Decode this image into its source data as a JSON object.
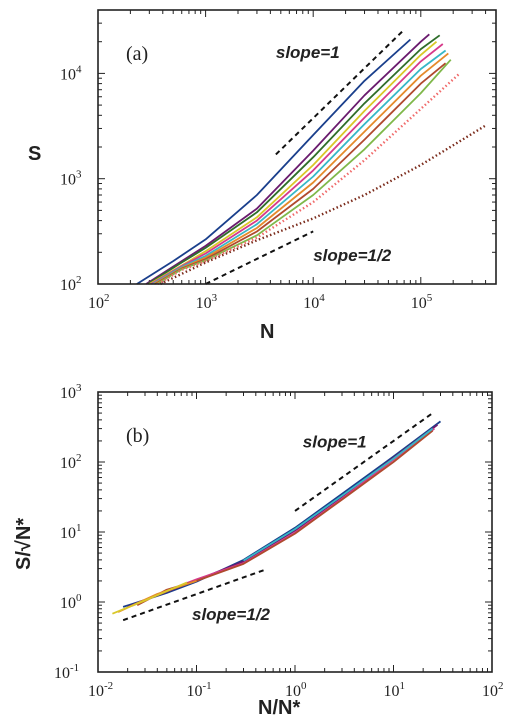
{
  "chart_data": [
    {
      "type": "line",
      "panel_label": "(a)",
      "xlabel": "N",
      "ylabel": "S",
      "xscale": "log",
      "yscale": "log",
      "xlim": [
        100,
        500000
      ],
      "ylim": [
        100,
        40000
      ],
      "x_tick_labels": [
        {
          "base": "10",
          "exp": "2",
          "value": 100
        },
        {
          "base": "10",
          "exp": "3",
          "value": 1000
        },
        {
          "base": "10",
          "exp": "4",
          "value": 10000
        },
        {
          "base": "10",
          "exp": "5",
          "value": 100000
        }
      ],
      "y_tick_labels": [
        {
          "base": "10",
          "exp": "2",
          "value": 100
        },
        {
          "base": "10",
          "exp": "3",
          "value": 1000
        },
        {
          "base": "10",
          "exp": "4",
          "value": 10000
        }
      ],
      "annotations": [
        {
          "text": "slope=1",
          "x": 4500,
          "y": 14000
        },
        {
          "text": "slope=1/2",
          "x": 10000,
          "y": 165
        }
      ],
      "guide_lines": [
        {
          "kind": "slope=1",
          "x": [
            4500,
            70000
          ],
          "y": [
            1700,
            26000
          ]
        },
        {
          "kind": "slope=1/2",
          "x": [
            1000,
            10000
          ],
          "y": [
            100,
            316
          ]
        }
      ],
      "series": [
        {
          "color": "#1a3f8c",
          "style": "solid",
          "x": [
            230,
            500,
            1000,
            3000,
            10000,
            30000,
            80000
          ],
          "y": [
            100,
            165,
            265,
            700,
            2600,
            8500,
            21000
          ]
        },
        {
          "color": "#6a1b6e",
          "style": "solid",
          "x": [
            280,
            600,
            1000,
            3000,
            10000,
            30000,
            100000,
            120000
          ],
          "y": [
            100,
            165,
            230,
            520,
            1850,
            6200,
            20000,
            23500
          ]
        },
        {
          "color": "#2f6e2a",
          "style": "solid",
          "x": [
            290,
            600,
            1000,
            3000,
            10000,
            30000,
            100000,
            150000
          ],
          "y": [
            100,
            160,
            220,
            480,
            1600,
            5200,
            17000,
            23000
          ]
        },
        {
          "color": "#d9c829",
          "style": "solid",
          "x": [
            300,
            600,
            1000,
            3000,
            10000,
            30000,
            100000,
            140000
          ],
          "y": [
            100,
            150,
            205,
            430,
            1350,
            4400,
            15000,
            20000
          ]
        },
        {
          "color": "#d63a8a",
          "style": "solid",
          "x": [
            310,
            600,
            1000,
            3000,
            10000,
            30000,
            100000,
            160000
          ],
          "y": [
            100,
            148,
            195,
            400,
            1200,
            3800,
            13000,
            19000
          ]
        },
        {
          "color": "#37b7c6",
          "style": "solid",
          "x": [
            320,
            600,
            1000,
            3000,
            10000,
            30000,
            100000,
            170000
          ],
          "y": [
            100,
            145,
            185,
            370,
            1050,
            3300,
            11000,
            16500
          ]
        },
        {
          "color": "#e58a2b",
          "style": "solid",
          "x": [
            330,
            600,
            1000,
            3000,
            10000,
            30000,
            100000,
            180000
          ],
          "y": [
            100,
            142,
            178,
            340,
            920,
            2800,
            9500,
            15500
          ]
        },
        {
          "color": "#b04a2e",
          "style": "solid",
          "x": [
            340,
            600,
            1000,
            3000,
            10000,
            30000,
            100000,
            170000
          ],
          "y": [
            100,
            140,
            172,
            315,
            800,
            2350,
            8000,
            12500
          ]
        },
        {
          "color": "#7fb84a",
          "style": "solid",
          "x": [
            350,
            600,
            1000,
            3000,
            10000,
            30000,
            100000,
            190000
          ],
          "y": [
            100,
            138,
            168,
            290,
            700,
            1900,
            6500,
            13500
          ]
        },
        {
          "color": "#f06a6a",
          "style": "dotted",
          "x": [
            360,
            600,
            1000,
            3000,
            10000,
            30000,
            100000,
            230000
          ],
          "y": [
            100,
            136,
            165,
            275,
            600,
            1500,
            4600,
            10000
          ]
        },
        {
          "color": "#7a2a1a",
          "style": "dotted",
          "x": [
            380,
            1000,
            3000,
            10000,
            30000,
            100000,
            400000
          ],
          "y": [
            100,
            160,
            260,
            420,
            700,
            1350,
            3200
          ]
        }
      ]
    },
    {
      "type": "line",
      "panel_label": "(b)",
      "xlabel": "N/N*",
      "ylabel": "S/√N*",
      "xscale": "log",
      "yscale": "log",
      "xlim": [
        0.01,
        100
      ],
      "ylim": [
        0.1,
        1000
      ],
      "x_tick_labels": [
        {
          "base": "10",
          "exp": "-2",
          "value": 0.01
        },
        {
          "base": "10",
          "exp": "-1",
          "value": 0.1
        },
        {
          "base": "10",
          "exp": "0",
          "value": 1
        },
        {
          "base": "10",
          "exp": "1",
          "value": 10
        },
        {
          "base": "10",
          "exp": "2",
          "value": 100
        }
      ],
      "y_tick_labels": [
        {
          "base": "10",
          "exp": "-1",
          "value": 0.1
        },
        {
          "base": "10",
          "exp": "0",
          "value": 1
        },
        {
          "base": "10",
          "exp": "1",
          "value": 10
        },
        {
          "base": "10",
          "exp": "2",
          "value": 100
        },
        {
          "base": "10",
          "exp": "3",
          "value": 1000
        }
      ],
      "annotations": [
        {
          "text": "slope=1",
          "x": 1.2,
          "y": 160
        },
        {
          "text": "slope=1/2",
          "x": 0.09,
          "y": 0.55
        }
      ],
      "guide_lines": [
        {
          "kind": "slope=1",
          "x": [
            1.0,
            25
          ],
          "y": [
            20,
            500
          ]
        },
        {
          "kind": "slope=1/2",
          "x": [
            0.018,
            0.5
          ],
          "y": [
            0.55,
            2.9
          ]
        }
      ],
      "series": [
        {
          "color": "#1a3f8c",
          "style": "solid",
          "x": [
            0.018,
            0.05,
            0.1,
            0.3,
            1,
            3,
            10,
            30
          ],
          "y": [
            0.85,
            1.35,
            1.95,
            4.0,
            11.5,
            35,
            120,
            380
          ]
        },
        {
          "color": "#6a1b6e",
          "style": "solid",
          "x": [
            0.02,
            0.05,
            0.1,
            0.3,
            1,
            3,
            10,
            28
          ],
          "y": [
            0.85,
            1.4,
            2.05,
            3.8,
            10.5,
            32,
            115,
            340
          ]
        },
        {
          "color": "#d63a8a",
          "style": "solid",
          "x": [
            0.022,
            0.05,
            0.1,
            0.3,
            1,
            3,
            10,
            26
          ],
          "y": [
            0.88,
            1.45,
            2.1,
            3.6,
            9.8,
            30,
            108,
            300
          ]
        },
        {
          "color": "#b04a2e",
          "style": "solid",
          "x": [
            0.025,
            0.05,
            0.1,
            0.3,
            1,
            3,
            10,
            25
          ],
          "y": [
            0.9,
            1.5,
            2.0,
            3.5,
            9.5,
            29,
            100,
            280
          ]
        },
        {
          "color": "#e58a2b",
          "style": "solid",
          "x": [
            0.016,
            0.04,
            0.1
          ],
          "y": [
            0.72,
            1.3,
            2.0
          ]
        },
        {
          "color": "#d9c829",
          "style": "solid",
          "x": [
            0.014,
            0.03,
            0.08
          ],
          "y": [
            0.68,
            1.05,
            1.9
          ]
        },
        {
          "color": "#37b7c6",
          "style": "solid",
          "x": [
            0.3,
            1,
            3,
            10,
            25
          ],
          "y": [
            3.9,
            11,
            33,
            112,
            300
          ]
        }
      ]
    }
  ]
}
